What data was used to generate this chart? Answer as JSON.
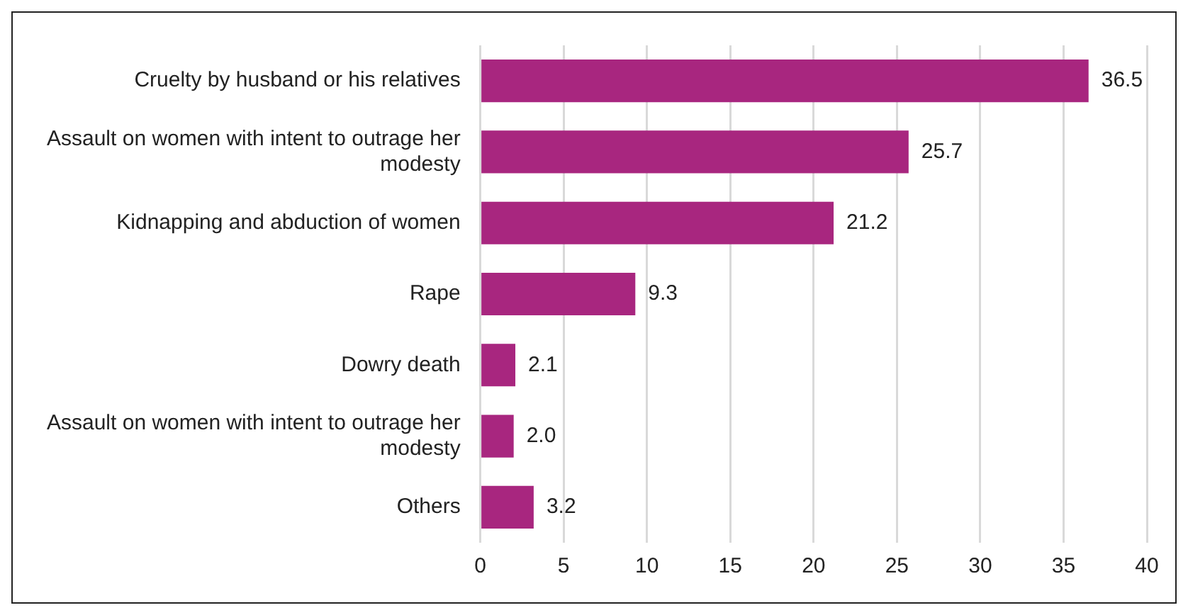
{
  "chart_data": {
    "type": "bar",
    "orientation": "horizontal",
    "categories": [
      "Cruelty by husband or his relatives",
      "Assault on women with intent to outrage her modesty",
      "Kidnapping and abduction of women",
      "Rape",
      "Dowry death",
      "Assault on women with intent to outrage her modesty",
      "Others"
    ],
    "values": [
      36.5,
      25.7,
      21.2,
      9.3,
      2.1,
      2.0,
      3.2
    ],
    "value_labels": [
      "36.5",
      "25.7",
      "21.2",
      "9.3",
      "2.1",
      "2.0",
      "3.2"
    ],
    "color": "#a8267f",
    "xlim": [
      0,
      40
    ],
    "xticks": [
      0,
      5,
      10,
      15,
      20,
      25,
      30,
      35,
      40
    ],
    "grid": "x",
    "legend": false
  }
}
